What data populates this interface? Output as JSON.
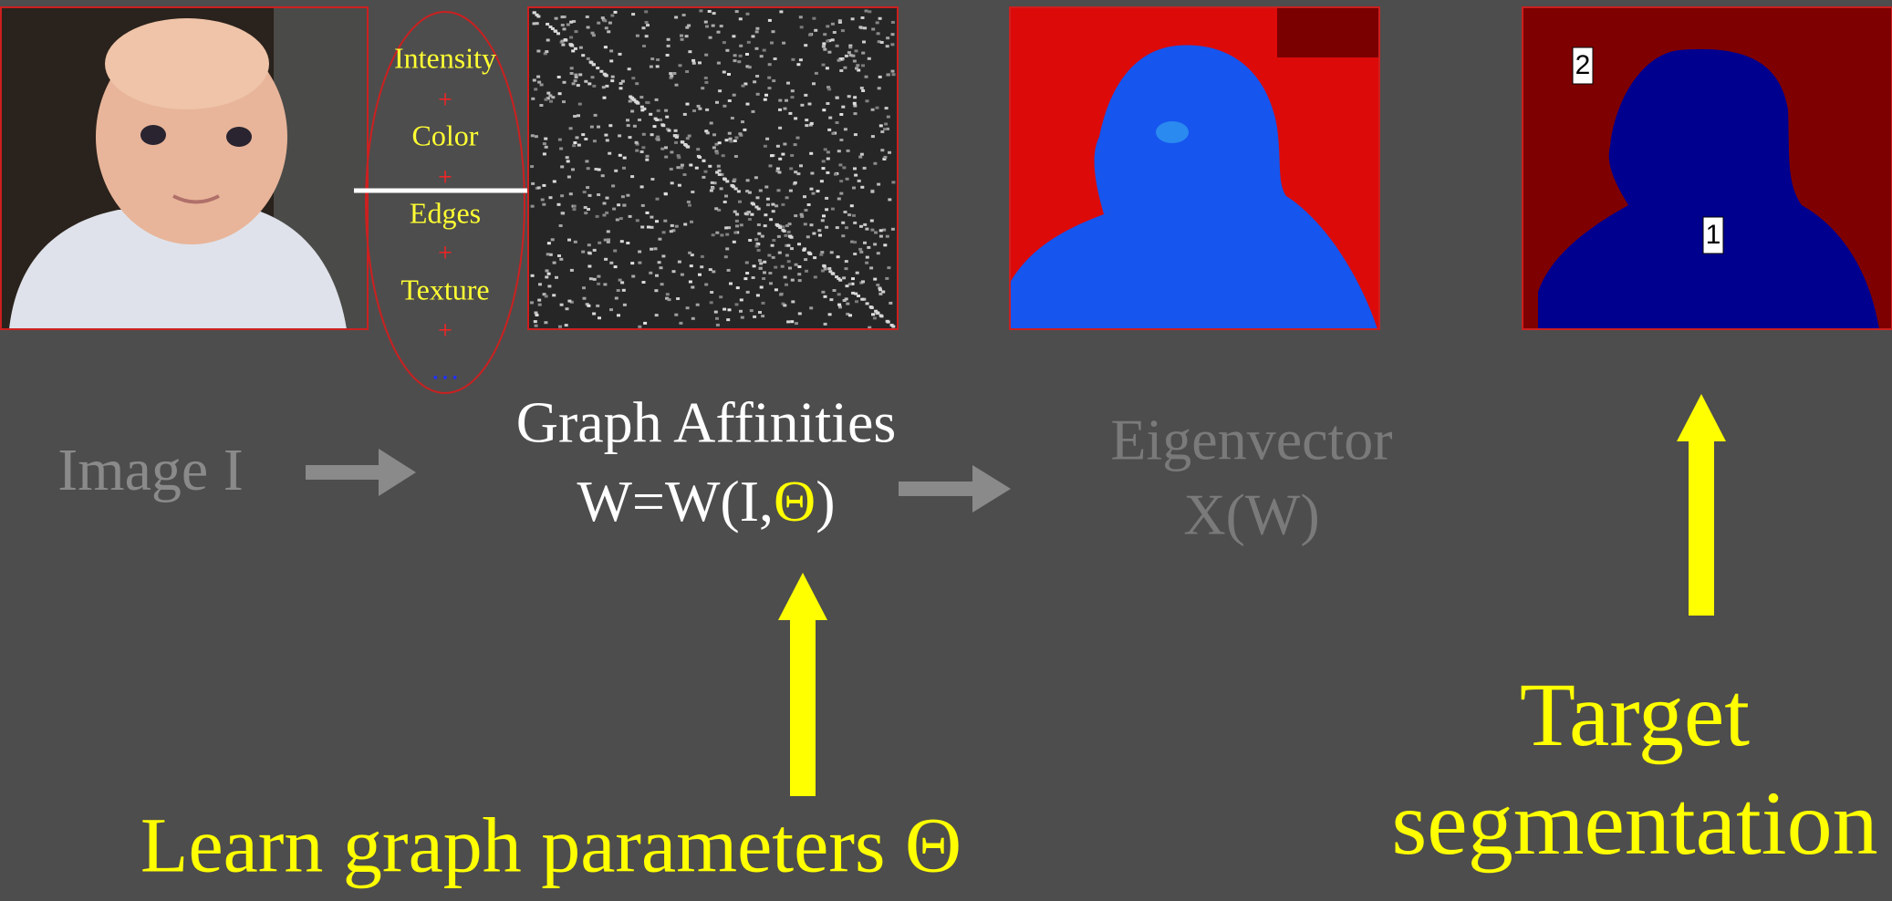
{
  "image_panel": {
    "label": "Image I"
  },
  "features": {
    "items": [
      "Intensity",
      "Color",
      "Edges",
      "Texture",
      "…"
    ],
    "separator": "+"
  },
  "affinities": {
    "title": "Graph Affinities",
    "formula_prefix": "W=W(I,",
    "formula_param": "Θ",
    "formula_suffix": ")"
  },
  "eigenvector": {
    "title": "Eigenvector",
    "formula": "X(W)"
  },
  "target": {
    "labels": [
      "2",
      "1"
    ],
    "caption_lines": [
      "Target",
      "segmentation"
    ]
  },
  "learn": {
    "caption": "Learn graph parameters Θ"
  }
}
